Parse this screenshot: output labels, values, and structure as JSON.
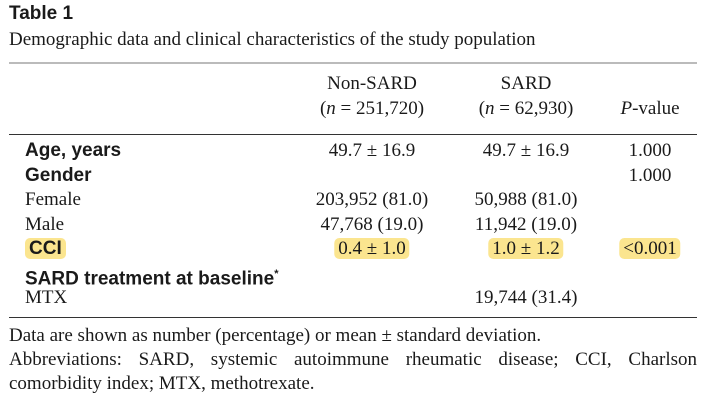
{
  "title": "Table 1",
  "subtitle": "Demographic data and clinical characteristics of the study population",
  "table": {
    "columns": [
      {
        "line1": "Non-SARD",
        "line2": [
          "(",
          "n",
          " = 251,720)"
        ]
      },
      {
        "line1": "SARD",
        "line2": [
          "(",
          "n",
          " = 62,930)"
        ]
      },
      {
        "line2": [
          "P",
          "-value"
        ]
      }
    ],
    "rows": [
      {
        "label": "Age, years",
        "bold": true,
        "cells": [
          "49.7 ± 16.9",
          "49.7 ± 16.9",
          "1.000"
        ]
      },
      {
        "label": "Gender",
        "bold": true,
        "cells": [
          null,
          null,
          "1.000"
        ]
      },
      {
        "label": "Female",
        "cells": [
          "203,952 (81.0)",
          "50,988 (81.0)",
          null
        ]
      },
      {
        "label": "Male",
        "cells": [
          "47,768 (19.0)",
          "11,942 (19.0)",
          null
        ]
      },
      {
        "label": "CCI",
        "bold": true,
        "highlight": true,
        "cells": [
          "0.4 ± 1.0",
          "1.0 ± 1.2",
          "<0.001"
        ]
      },
      {
        "label": "SARD treatment at baseline",
        "footnote_mark": "*",
        "bold": true,
        "cells": [
          null,
          null,
          null
        ]
      },
      {
        "label": "MTX",
        "cells": [
          null,
          "19,744 (31.4)",
          null
        ]
      }
    ]
  },
  "notes": [
    "Data are shown as number (percentage) or mean ± standard deviation.",
    "Abbreviations: SARD, systemic autoimmune rheumatic disease; CCI, Charlson comorbidity index; MTX, methotrexate."
  ]
}
